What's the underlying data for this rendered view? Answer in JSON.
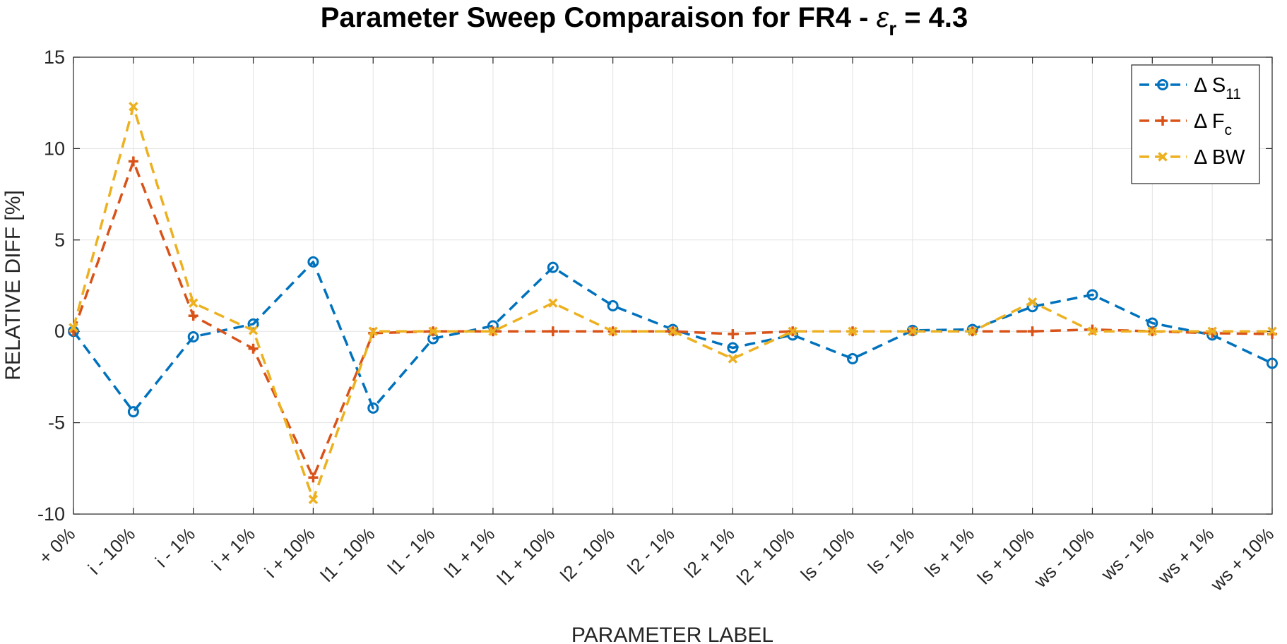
{
  "chart_data": {
    "type": "line",
    "title_main": "Parameter Sweep Comparaison for FR4 - ",
    "title_symbol": "ε",
    "title_symbol_sub": "r",
    "title_tail": " = 4.3",
    "xlabel": "PARAMETER LABEL",
    "ylabel": "RELATIVE DIFF [%]",
    "ylim": [
      -10,
      15
    ],
    "yticks": [
      -10,
      -5,
      0,
      5,
      10,
      15
    ],
    "grid": true,
    "legend_position": "top-right",
    "categories": [
      "+ 0%",
      "i - 10%",
      "i - 1%",
      "i + 1%",
      "i + 10%",
      "l1 - 10%",
      "l1 - 1%",
      "l1 + 1%",
      "l1 + 10%",
      "l2 - 10%",
      "l2 - 1%",
      "l2 + 1%",
      "l2 + 10%",
      "ls - 10%",
      "ls - 1%",
      "ls + 1%",
      "ls + 10%",
      "ws - 10%",
      "ws - 1%",
      "ws + 1%",
      "ws + 10%"
    ],
    "series": [
      {
        "name": "Δ S",
        "name_sub": "11",
        "color": "#0072BD",
        "marker": "circle",
        "values": [
          0,
          -4.4,
          -0.3,
          0.4,
          3.8,
          -4.2,
          -0.4,
          0.3,
          3.5,
          1.4,
          0.1,
          -0.9,
          -0.2,
          -1.5,
          0.05,
          0.1,
          1.35,
          2.0,
          0.45,
          -0.2,
          -1.75
        ]
      },
      {
        "name": "Δ F",
        "name_sub": "c",
        "color": "#D95319",
        "marker": "plus",
        "values": [
          0,
          9.3,
          0.85,
          -0.95,
          -8.0,
          -0.1,
          0,
          0,
          0,
          0,
          0,
          -0.15,
          0,
          0,
          0,
          0,
          0,
          0.1,
          0,
          -0.1,
          -0.15
        ]
      },
      {
        "name": "Δ BW",
        "name_sub": "",
        "color": "#EDB120",
        "marker": "x",
        "values": [
          0.2,
          12.3,
          1.55,
          0.05,
          -9.2,
          0,
          0,
          0,
          1.55,
          0,
          0,
          -1.5,
          0,
          0,
          0,
          0,
          1.6,
          0,
          0,
          0,
          0
        ]
      }
    ]
  }
}
